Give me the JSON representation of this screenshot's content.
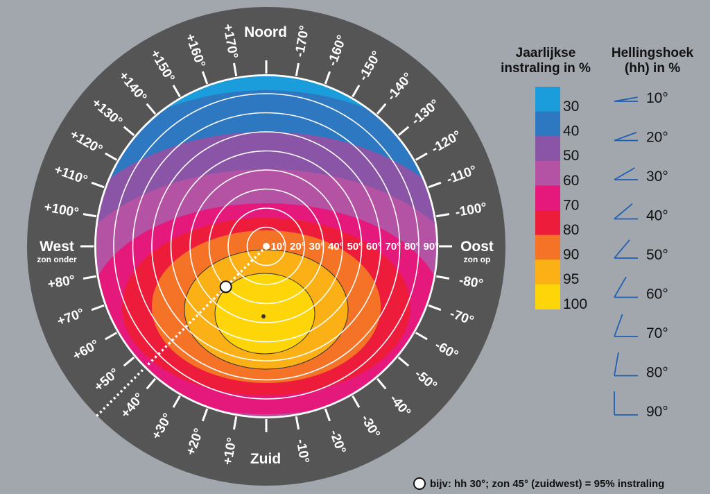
{
  "compass": {
    "north": "Noord",
    "south": "Zuid",
    "west": "West",
    "west_sub": "zon onder",
    "east": "Oost",
    "east_sub": "zon op"
  },
  "azimuth_labels": [
    {
      "deg": -170,
      "text": "-170°"
    },
    {
      "deg": -160,
      "text": "-160°"
    },
    {
      "deg": -150,
      "text": "-150°"
    },
    {
      "deg": -140,
      "text": "-140°"
    },
    {
      "deg": -130,
      "text": "-130°"
    },
    {
      "deg": -120,
      "text": "-120°"
    },
    {
      "deg": -110,
      "text": "-110°"
    },
    {
      "deg": -100,
      "text": "-100°"
    },
    {
      "deg": -80,
      "text": "-80°"
    },
    {
      "deg": -70,
      "text": "-70°"
    },
    {
      "deg": -60,
      "text": "-60°"
    },
    {
      "deg": -50,
      "text": "-50°"
    },
    {
      "deg": -40,
      "text": "-40°"
    },
    {
      "deg": -30,
      "text": "-30°"
    },
    {
      "deg": -20,
      "text": "-20°"
    },
    {
      "deg": -10,
      "text": "-10°"
    },
    {
      "deg": 10,
      "text": "+10°"
    },
    {
      "deg": 20,
      "text": "+20°"
    },
    {
      "deg": 30,
      "text": "+30°"
    },
    {
      "deg": 40,
      "text": "+40°"
    },
    {
      "deg": 50,
      "text": "+50°"
    },
    {
      "deg": 60,
      "text": "+60°"
    },
    {
      "deg": 70,
      "text": "+70°"
    },
    {
      "deg": 80,
      "text": "+80°"
    },
    {
      "deg": 100,
      "text": "+100°"
    },
    {
      "deg": 110,
      "text": "+110°"
    },
    {
      "deg": 120,
      "text": "+120°"
    },
    {
      "deg": 130,
      "text": "+130°"
    },
    {
      "deg": 140,
      "text": "+140°"
    },
    {
      "deg": 150,
      "text": "+150°"
    },
    {
      "deg": 160,
      "text": "+160°"
    },
    {
      "deg": 170,
      "text": "+170°"
    }
  ],
  "tilt_rings": [
    "10°",
    "20°",
    "30°",
    "40°",
    "50°",
    "60°",
    "70°",
    "80°",
    "90°"
  ],
  "zones": [
    {
      "value": 30,
      "color": "#1b9ddb"
    },
    {
      "value": 40,
      "color": "#2e78c2"
    },
    {
      "value": 50,
      "color": "#8a55a6"
    },
    {
      "value": 60,
      "color": "#b452a3"
    },
    {
      "value": 70,
      "color": "#e5197b"
    },
    {
      "value": 80,
      "color": "#ec1c3a"
    },
    {
      "value": 90,
      "color": "#f47327"
    },
    {
      "value": 95,
      "color": "#fbb116"
    },
    {
      "value": 100,
      "color": "#fdd508"
    }
  ],
  "legend": {
    "irradiance_title_line1": "Jaarlijkse",
    "irradiance_title_line2": "instraling in %",
    "tilt_title_line1": "Hellingshoek",
    "tilt_title_line2": "(hh) in %",
    "irradiance_values": [
      "30",
      "40",
      "50",
      "60",
      "70",
      "80",
      "90",
      "95",
      "100"
    ],
    "tilt_values": [
      {
        "deg": 10,
        "label": "10°"
      },
      {
        "deg": 20,
        "label": "20°"
      },
      {
        "deg": 30,
        "label": "30°"
      },
      {
        "deg": 40,
        "label": "40°"
      },
      {
        "deg": 50,
        "label": "50°"
      },
      {
        "deg": 60,
        "label": "60°"
      },
      {
        "deg": 70,
        "label": "70°"
      },
      {
        "deg": 80,
        "label": "80°"
      },
      {
        "deg": 90,
        "label": "90°"
      }
    ],
    "line_color": "#1e5fb4"
  },
  "example": {
    "tilt_deg": 30,
    "azimuth_deg": 45,
    "text": "bijv: hh 30°; zon 45° (zuidwest) = 95% instraling"
  }
}
